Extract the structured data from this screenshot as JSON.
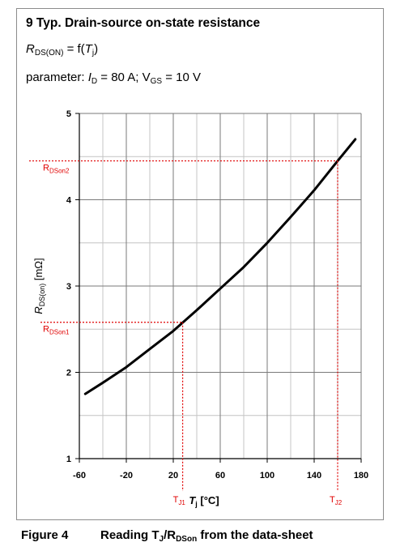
{
  "figure": {
    "title": "9 Typ. Drain-source on-state resistance",
    "function_line": {
      "symbol": "R",
      "symbol_sub": "DS(ON)",
      "eq": "= f(",
      "arg": "T",
      "arg_sub": "j",
      "close": ")"
    },
    "parameter_line": {
      "prefix": "parameter: ",
      "id_symbol": "I",
      "id_sub": "D",
      "id_value": "= 80 A; ",
      "vgs_symbol": "V",
      "vgs_sub": "GS",
      "vgs_value": "= 10 V"
    }
  },
  "caption": {
    "number": "Figure 4",
    "text_prefix": "Reading T",
    "text_sub1": "J",
    "text_mid": "/R",
    "text_sub2": "DSon",
    "text_suffix": " from the data-sheet"
  },
  "annotations": {
    "rdson1": {
      "main": "R",
      "sub": "DSon1",
      "y": 2.58
    },
    "rdson2": {
      "main": "R",
      "sub": "DSon2",
      "y": 4.45
    },
    "tj1": {
      "main": "T",
      "sub": "J1",
      "x": 28
    },
    "tj2": {
      "main": "T",
      "sub": "J2",
      "x": 160
    },
    "color": "#e00000"
  },
  "chart_data": {
    "type": "line",
    "xlabel": {
      "symbol": "T",
      "sub": "j",
      "unit": " [°C]"
    },
    "ylabel": {
      "symbol": "R",
      "sub": "DS(on)",
      "unit": " [mΩ]"
    },
    "xlim": [
      -60,
      180
    ],
    "ylim": [
      1,
      5
    ],
    "x_ticks": [
      -60,
      -20,
      20,
      60,
      100,
      140,
      180
    ],
    "y_ticks": [
      1,
      2,
      3,
      4,
      5
    ],
    "grid": true,
    "series": [
      {
        "x": [
          -55,
          -40,
          -20,
          0,
          20,
          40,
          60,
          80,
          100,
          120,
          140,
          160,
          175
        ],
        "y": [
          1.75,
          1.88,
          2.06,
          2.27,
          2.48,
          2.72,
          2.97,
          3.22,
          3.5,
          3.8,
          4.11,
          4.45,
          4.7
        ]
      }
    ],
    "line_color": "#000000"
  }
}
